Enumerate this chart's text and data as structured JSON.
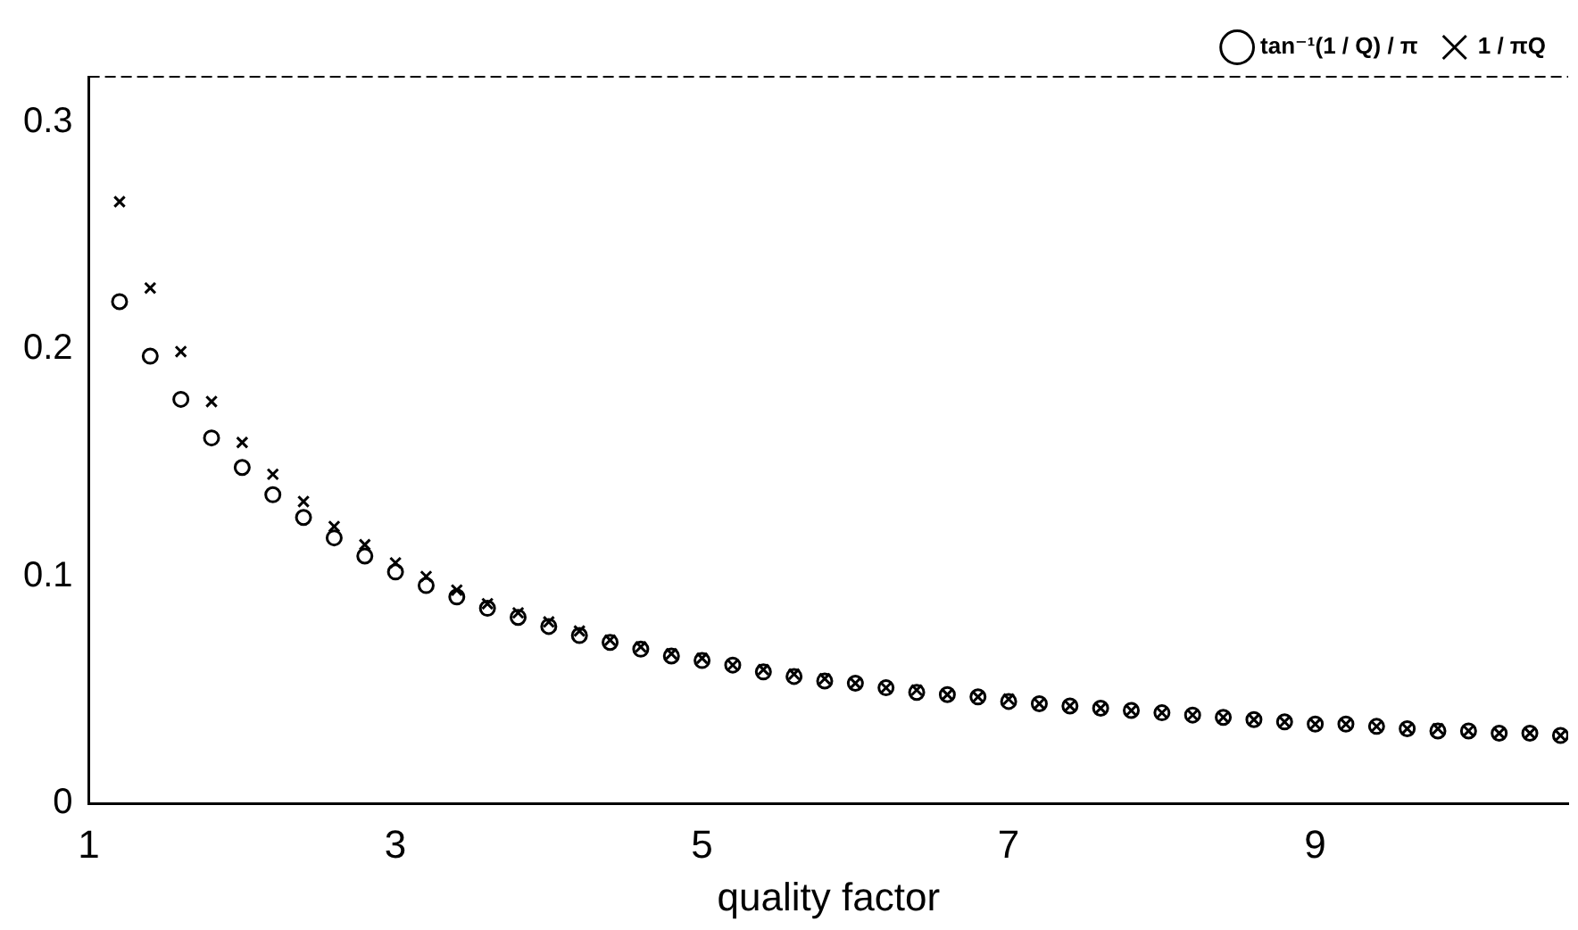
{
  "chart_data": {
    "type": "scatter",
    "xlabel": "quality factor",
    "xlim": [
      1,
      10.65
    ],
    "xticks": [
      1,
      3,
      5,
      7,
      9
    ],
    "ylim": [
      0,
      0.32
    ],
    "yticks": [
      0,
      0.1,
      0.2,
      0.3
    ],
    "grid": false,
    "legend": "top right",
    "x": [
      1.2,
      1.4,
      1.6,
      1.8,
      2.0,
      2.2,
      2.4,
      2.6,
      2.8,
      3.0,
      3.2,
      3.4,
      3.6,
      3.8,
      4.0,
      4.2,
      4.4,
      4.6,
      4.8,
      5.0,
      5.2,
      5.4,
      5.6,
      5.8,
      6.0,
      6.2,
      6.4,
      6.6,
      6.8,
      7.0,
      7.2,
      7.4,
      7.6,
      7.8,
      8.0,
      8.2,
      8.4,
      8.6,
      8.8,
      9.0,
      9.2,
      9.4,
      9.6,
      9.8,
      10.0,
      10.2,
      10.4,
      10.6
    ],
    "series": [
      {
        "name": "tan⁻¹(1 / Q) / π",
        "color": "#000000",
        "marker": "circle",
        "values": [
          0.221,
          0.197,
          0.178,
          0.161,
          0.148,
          0.136,
          0.126,
          0.117,
          0.109,
          0.102,
          0.096,
          0.091,
          0.086,
          0.082,
          0.078,
          0.074,
          0.071,
          0.068,
          0.065,
          0.063,
          0.061,
          0.058,
          0.056,
          0.054,
          0.053,
          0.051,
          0.049,
          0.048,
          0.047,
          0.045,
          0.044,
          0.043,
          0.042,
          0.041,
          0.04,
          0.039,
          0.038,
          0.037,
          0.036,
          0.035,
          0.035,
          0.034,
          0.033,
          0.032,
          0.032,
          0.031,
          0.031,
          0.03
        ]
      },
      {
        "name": "1 / πQ",
        "color": "#000000",
        "marker": "cross",
        "values": [
          0.265,
          0.227,
          0.199,
          0.177,
          0.159,
          0.145,
          0.133,
          0.122,
          0.114,
          0.106,
          0.1,
          0.094,
          0.088,
          0.084,
          0.08,
          0.076,
          0.072,
          0.069,
          0.066,
          0.064,
          0.061,
          0.059,
          0.057,
          0.055,
          0.053,
          0.051,
          0.05,
          0.048,
          0.047,
          0.046,
          0.044,
          0.043,
          0.042,
          0.041,
          0.04,
          0.039,
          0.038,
          0.037,
          0.036,
          0.035,
          0.035,
          0.034,
          0.033,
          0.033,
          0.032,
          0.031,
          0.031,
          0.03
        ]
      }
    ]
  }
}
